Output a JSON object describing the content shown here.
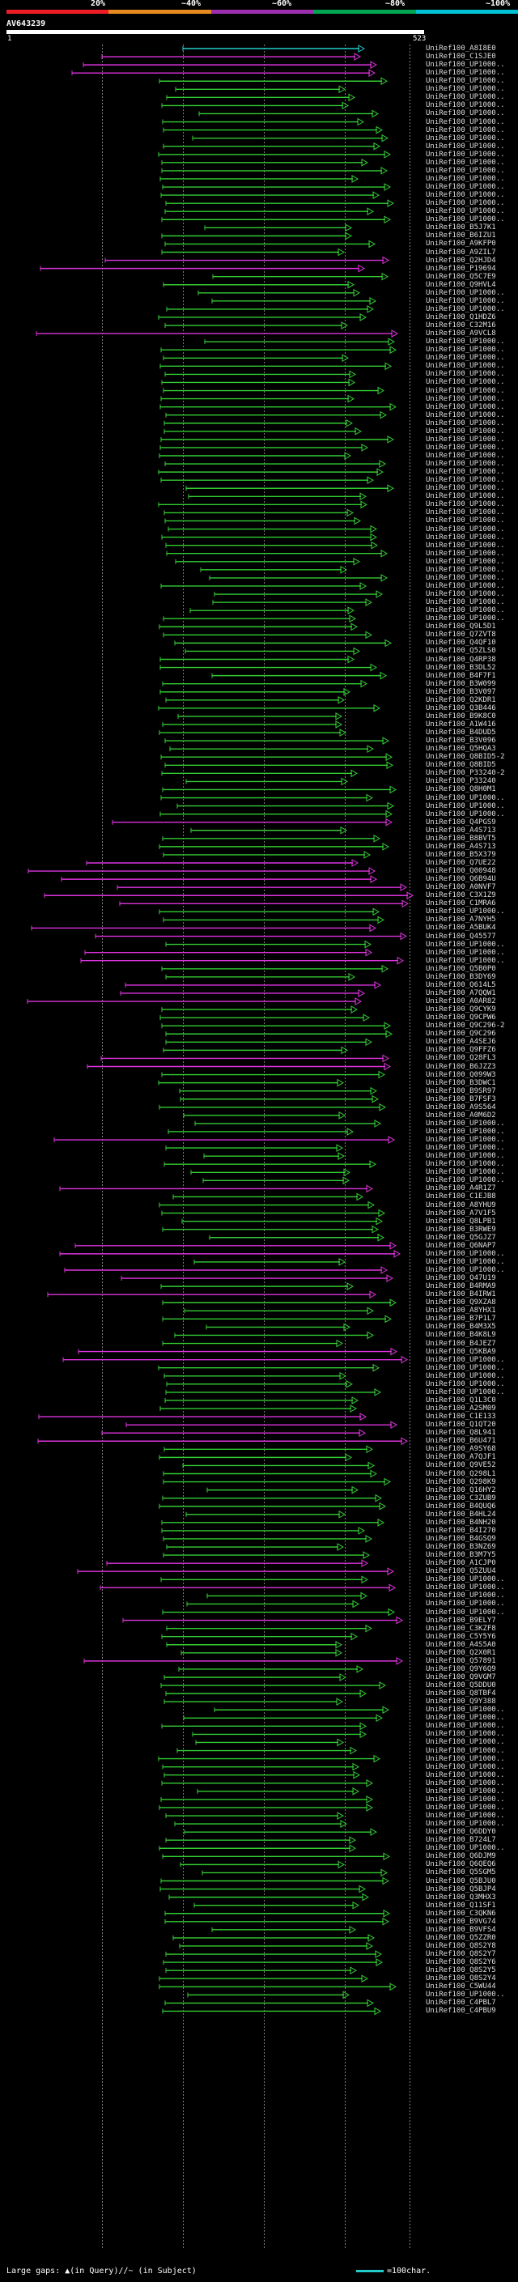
{
  "header": {
    "percent_labels": [
      "20%",
      "~40%",
      "~60%",
      "~80%",
      "~100%"
    ],
    "identity_colors": [
      "#ee1c25",
      "#e78a1f",
      "#9b2fae",
      "#00a651",
      "#00c2d4"
    ]
  },
  "query": {
    "name": "AV643239",
    "start": "1",
    "end": "523"
  },
  "legend": {
    "large_gaps": "Large gaps: ▲(in Query)/∕~ (in Subject)",
    "scale": "=100char."
  },
  "hits": [
    {
      "name": "UniRef100_A8I8E0",
      "color": "cyan"
    },
    {
      "name": "UniRef100_C1SJE0",
      "color": "magenta"
    },
    {
      "name": "UniRef100_UP1000..",
      "color": "magenta"
    },
    {
      "name": "UniRef100_UP1000..",
      "color": "magenta"
    },
    {
      "name": "UniRef100_UP1000..",
      "color": "green"
    },
    {
      "name": "UniRef100_UP1000..",
      "color": "green"
    },
    {
      "name": "UniRef100_UP1000..",
      "color": "green"
    },
    {
      "name": "UniRef100_UP1000..",
      "color": "green"
    },
    {
      "name": "UniRef100_UP1000..",
      "color": "green"
    },
    {
      "name": "UniRef100_UP1000..",
      "color": "green"
    },
    {
      "name": "UniRef100_UP1000..",
      "color": "green"
    },
    {
      "name": "UniRef100_UP1000..",
      "color": "green"
    },
    {
      "name": "UniRef100_UP1000..",
      "color": "green"
    },
    {
      "name": "UniRef100_UP1000..",
      "color": "green"
    },
    {
      "name": "UniRef100_UP1000..",
      "color": "green"
    },
    {
      "name": "UniRef100_UP1000..",
      "color": "green"
    },
    {
      "name": "UniRef100_UP1000..",
      "color": "green"
    },
    {
      "name": "UniRef100_UP1000..",
      "color": "green"
    },
    {
      "name": "UniRef100_UP1000..",
      "color": "green"
    },
    {
      "name": "UniRef100_UP1000..",
      "color": "green"
    },
    {
      "name": "UniRef100_UP1000..",
      "color": "green"
    },
    {
      "name": "UniRef100_UP1000..",
      "color": "green"
    },
    {
      "name": "UniRef100_B5J7K1",
      "color": "green"
    },
    {
      "name": "UniRef100_B6IZU1",
      "color": "green"
    },
    {
      "name": "UniRef100_A9KFP0",
      "color": "green"
    },
    {
      "name": "UniRef100_A9ZIL7",
      "color": "green"
    },
    {
      "name": "UniRef100_Q2HJD4",
      "color": "magenta"
    },
    {
      "name": "UniRef100_P19694",
      "color": "magenta"
    },
    {
      "name": "UniRef100_Q5C7E9",
      "color": "green"
    },
    {
      "name": "UniRef100_Q9HVL4",
      "color": "green"
    },
    {
      "name": "UniRef100_UP1000..",
      "color": "green"
    },
    {
      "name": "UniRef100_UP1000..",
      "color": "green"
    },
    {
      "name": "UniRef100_UP1000..",
      "color": "green"
    },
    {
      "name": "UniRef100_Q1HDZ6",
      "color": "green"
    },
    {
      "name": "UniRef100_C32M16",
      "color": "green"
    },
    {
      "name": "UniRef100_A9VCL8",
      "color": "magenta"
    },
    {
      "name": "UniRef100_UP1000..",
      "color": "green"
    },
    {
      "name": "UniRef100_UP1000..",
      "color": "green"
    },
    {
      "name": "UniRef100_UP1000..",
      "color": "green"
    },
    {
      "name": "UniRef100_UP1000..",
      "color": "green"
    },
    {
      "name": "UniRef100_UP1000..",
      "color": "green"
    },
    {
      "name": "UniRef100_UP1000..",
      "color": "green"
    },
    {
      "name": "UniRef100_UP1000..",
      "color": "green"
    },
    {
      "name": "UniRef100_UP1000..",
      "color": "green"
    },
    {
      "name": "UniRef100_UP1000..",
      "color": "green"
    },
    {
      "name": "UniRef100_UP1000..",
      "color": "green"
    },
    {
      "name": "UniRef100_UP1000..",
      "color": "green"
    },
    {
      "name": "UniRef100_UP1000..",
      "color": "green"
    },
    {
      "name": "UniRef100_UP1000..",
      "color": "green"
    },
    {
      "name": "UniRef100_UP1000..",
      "color": "green"
    },
    {
      "name": "UniRef100_UP1000..",
      "color": "green"
    },
    {
      "name": "UniRef100_UP1000..",
      "color": "green"
    },
    {
      "name": "UniRef100_UP1000..",
      "color": "green"
    },
    {
      "name": "UniRef100_UP1000..",
      "color": "green"
    },
    {
      "name": "UniRef100_UP1000..",
      "color": "green"
    },
    {
      "name": "UniRef100_UP1000..",
      "color": "green"
    },
    {
      "name": "UniRef100_UP1000..",
      "color": "green"
    },
    {
      "name": "UniRef100_UP1000..",
      "color": "green"
    },
    {
      "name": "UniRef100_UP1000..",
      "color": "green"
    },
    {
      "name": "UniRef100_UP1000..",
      "color": "green"
    },
    {
      "name": "UniRef100_UP1000..",
      "color": "green"
    },
    {
      "name": "UniRef100_UP1000..",
      "color": "green"
    },
    {
      "name": "UniRef100_UP1000..",
      "color": "green"
    },
    {
      "name": "UniRef100_UP1000..",
      "color": "green"
    },
    {
      "name": "UniRef100_UP1000..",
      "color": "green"
    },
    {
      "name": "UniRef100_UP1000..",
      "color": "green"
    },
    {
      "name": "UniRef100_UP1000..",
      "color": "green"
    },
    {
      "name": "UniRef100_UP1000..",
      "color": "green"
    },
    {
      "name": "UniRef100_UP1000..",
      "color": "green"
    },
    {
      "name": "UniRef100_UP1000..",
      "color": "green"
    },
    {
      "name": "UniRef100_UP1000..",
      "color": "green"
    },
    {
      "name": "UniRef100_Q9L5D1",
      "color": "green"
    },
    {
      "name": "UniRef100_Q7ZVT8",
      "color": "green"
    },
    {
      "name": "UniRef100_Q4QF10",
      "color": "green"
    },
    {
      "name": "UniRef100_Q5ZLS0",
      "color": "green"
    },
    {
      "name": "UniRef100_Q4RP38",
      "color": "green"
    },
    {
      "name": "UniRef100_B3DL52",
      "color": "green"
    },
    {
      "name": "UniRef100_B4F7F1",
      "color": "green"
    },
    {
      "name": "UniRef100_B3W099",
      "color": "green"
    },
    {
      "name": "UniRef100_B3V097",
      "color": "green"
    },
    {
      "name": "UniRef100_Q2KDR1",
      "color": "green"
    },
    {
      "name": "UniRef100_Q3B446",
      "color": "green"
    },
    {
      "name": "UniRef100_B9K8C0",
      "color": "green"
    },
    {
      "name": "UniRef100_A1W416",
      "color": "green"
    },
    {
      "name": "UniRef100_B4DUD5",
      "color": "green"
    },
    {
      "name": "UniRef100_B3V096",
      "color": "green"
    },
    {
      "name": "UniRef100_Q5HQA3",
      "color": "green"
    },
    {
      "name": "UniRef100_Q8BID5-2",
      "color": "green"
    },
    {
      "name": "UniRef100_Q8BID5",
      "color": "green"
    },
    {
      "name": "UniRef100_P33240-2",
      "color": "green"
    },
    {
      "name": "UniRef100_P33240",
      "color": "green"
    },
    {
      "name": "UniRef100_Q8H0M1",
      "color": "green"
    },
    {
      "name": "UniRef100_UP1000..",
      "color": "green"
    },
    {
      "name": "UniRef100_UP1000..",
      "color": "green"
    },
    {
      "name": "UniRef100_UP1000..",
      "color": "green"
    },
    {
      "name": "UniRef100_Q4PGS9",
      "color": "magenta"
    },
    {
      "name": "UniRef100_A4S713",
      "color": "green"
    },
    {
      "name": "UniRef100_B8BVT5",
      "color": "green"
    },
    {
      "name": "UniRef100_A4S713",
      "color": "green"
    },
    {
      "name": "UniRef100_B5X379",
      "color": "green"
    },
    {
      "name": "UniRef100_Q7UE22",
      "color": "magenta"
    },
    {
      "name": "UniRef100_Q00948",
      "color": "magenta"
    },
    {
      "name": "UniRef100_Q6B94U",
      "color": "magenta"
    },
    {
      "name": "UniRef100_A0NVF7",
      "color": "magenta"
    },
    {
      "name": "UniRef100_C3X1Z9",
      "color": "magenta"
    },
    {
      "name": "UniRef100_C1MRA6",
      "color": "magenta"
    },
    {
      "name": "UniRef100_UP1000..",
      "color": "green"
    },
    {
      "name": "UniRef100_A7NYH5",
      "color": "green"
    },
    {
      "name": "UniRef100_A5BUK4",
      "color": "magenta"
    },
    {
      "name": "UniRef100_Q45577",
      "color": "magenta"
    },
    {
      "name": "UniRef100_UP1000..",
      "color": "green"
    },
    {
      "name": "UniRef100_UP1000..",
      "color": "magenta"
    },
    {
      "name": "UniRef100_UP1000..",
      "color": "magenta"
    },
    {
      "name": "UniRef100_Q5B0P0",
      "color": "green"
    },
    {
      "name": "UniRef100_B3DY69",
      "color": "green"
    },
    {
      "name": "UniRef100_Q614L5",
      "color": "magenta"
    },
    {
      "name": "UniRef100_A7QQW1",
      "color": "magenta"
    },
    {
      "name": "UniRef100_A0AR82",
      "color": "magenta"
    },
    {
      "name": "UniRef100_Q9CYK9",
      "color": "green"
    },
    {
      "name": "UniRef100_Q9CPW6",
      "color": "green"
    },
    {
      "name": "UniRef100_Q9C296-2",
      "color": "green"
    },
    {
      "name": "UniRef100_Q9C296",
      "color": "green"
    },
    {
      "name": "UniRef100_A4SEJ6",
      "color": "green"
    },
    {
      "name": "UniRef100_Q9FFZ6",
      "color": "green"
    },
    {
      "name": "UniRef100_Q28FL3",
      "color": "magenta"
    },
    {
      "name": "UniRef100_B6JZZ3",
      "color": "magenta"
    },
    {
      "name": "UniRef100_Q099W3",
      "color": "green"
    },
    {
      "name": "UniRef100_B3DWC1",
      "color": "green"
    },
    {
      "name": "UniRef100_B9SR97",
      "color": "green"
    },
    {
      "name": "UniRef100_B7FSF3",
      "color": "green"
    },
    {
      "name": "UniRef100_A9S564",
      "color": "green"
    },
    {
      "name": "UniRef100_A0M6D2",
      "color": "green"
    },
    {
      "name": "UniRef100_UP1000..",
      "color": "green"
    },
    {
      "name": "UniRef100_UP1000..",
      "color": "green"
    },
    {
      "name": "UniRef100_UP1000..",
      "color": "magenta"
    },
    {
      "name": "UniRef100_UP1000..",
      "color": "green"
    },
    {
      "name": "UniRef100_UP1000..",
      "color": "green"
    },
    {
      "name": "UniRef100_UP1000..",
      "color": "green"
    },
    {
      "name": "UniRef100_UP1000..",
      "color": "green"
    },
    {
      "name": "UniRef100_UP1000..",
      "color": "green"
    },
    {
      "name": "UniRef100_A4R1Z7",
      "color": "magenta"
    },
    {
      "name": "UniRef100_C1EJB8",
      "color": "green"
    },
    {
      "name": "UniRef100_A8YHU9",
      "color": "green"
    },
    {
      "name": "UniRef100_A7V1F5",
      "color": "green"
    },
    {
      "name": "UniRef100_Q8LPB1",
      "color": "green"
    },
    {
      "name": "UniRef100_B3RWE9",
      "color": "green"
    },
    {
      "name": "UniRef100_Q5GJZ7",
      "color": "green"
    },
    {
      "name": "UniRef100_Q6NAP7",
      "color": "magenta"
    },
    {
      "name": "UniRef100_UP1000..",
      "color": "magenta"
    },
    {
      "name": "UniRef100_UP1000..",
      "color": "green"
    },
    {
      "name": "UniRef100_UP1000..",
      "color": "magenta"
    },
    {
      "name": "UniRef100_Q47U19",
      "color": "magenta"
    },
    {
      "name": "UniRef100_B4RMA9",
      "color": "green"
    },
    {
      "name": "UniRef100_B4IRW1",
      "color": "magenta"
    },
    {
      "name": "UniRef100_Q9XZA8",
      "color": "green"
    },
    {
      "name": "UniRef100_A8YHX1",
      "color": "green"
    },
    {
      "name": "UniRef100_B7P1L7",
      "color": "green"
    },
    {
      "name": "UniRef100_B4M3X5",
      "color": "green"
    },
    {
      "name": "UniRef100_B4K8L9",
      "color": "green"
    },
    {
      "name": "UniRef100_B4JEZ7",
      "color": "green"
    },
    {
      "name": "UniRef100_Q5KBA9",
      "color": "magenta"
    },
    {
      "name": "UniRef100_UP1000..",
      "color": "magenta"
    },
    {
      "name": "UniRef100_UP1000..",
      "color": "green"
    },
    {
      "name": "UniRef100_UP1000..",
      "color": "green"
    },
    {
      "name": "UniRef100_UP1000..",
      "color": "green"
    },
    {
      "name": "UniRef100_UP1000..",
      "color": "green"
    },
    {
      "name": "UniRef100_Q1L3C0",
      "color": "green"
    },
    {
      "name": "UniRef100_A2SM09",
      "color": "green"
    },
    {
      "name": "UniRef100_C1E133",
      "color": "magenta"
    },
    {
      "name": "UniRef100_Q1QT20",
      "color": "magenta"
    },
    {
      "name": "UniRef100_Q8L941",
      "color": "magenta"
    },
    {
      "name": "UniRef100_B6U471",
      "color": "magenta"
    },
    {
      "name": "UniRef100_A9SY68",
      "color": "green"
    },
    {
      "name": "UniRef100_A7QJF1",
      "color": "green"
    },
    {
      "name": "UniRef100_Q9VE52",
      "color": "green"
    },
    {
      "name": "UniRef100_Q298L1",
      "color": "green"
    },
    {
      "name": "UniRef100_Q298K9",
      "color": "green"
    },
    {
      "name": "UniRef100_Q16HY2",
      "color": "green"
    },
    {
      "name": "UniRef100_C3ZUB9",
      "color": "green"
    },
    {
      "name": "UniRef100_B4QUQ6",
      "color": "green"
    },
    {
      "name": "UniRef100_B4HL24",
      "color": "green"
    },
    {
      "name": "UniRef100_B4NH20",
      "color": "green"
    },
    {
      "name": "UniRef100_B4I270",
      "color": "green"
    },
    {
      "name": "UniRef100_B4GSQ9",
      "color": "green"
    },
    {
      "name": "UniRef100_B3NZ69",
      "color": "green"
    },
    {
      "name": "UniRef100_B3M7Y5",
      "color": "green"
    },
    {
      "name": "UniRef100_A1CJP0",
      "color": "magenta"
    },
    {
      "name": "UniRef100_Q5ZUU4",
      "color": "magenta"
    },
    {
      "name": "UniRef100_UP1000..",
      "color": "green"
    },
    {
      "name": "UniRef100_UP1000..",
      "color": "magenta"
    },
    {
      "name": "UniRef100_UP1000..",
      "color": "green"
    },
    {
      "name": "UniRef100_UP1000..",
      "color": "green"
    },
    {
      "name": "UniRef100_UP1000..",
      "color": "green"
    },
    {
      "name": "UniRef100_B9ELY7",
      "color": "magenta"
    },
    {
      "name": "UniRef100_C3KZF8",
      "color": "green"
    },
    {
      "name": "UniRef100_C5Y5Y6",
      "color": "green"
    },
    {
      "name": "UniRef100_A4S5A0",
      "color": "green"
    },
    {
      "name": "UniRef100_Q2X0R1",
      "color": "green"
    },
    {
      "name": "UniRef100_Q57891",
      "color": "magenta"
    },
    {
      "name": "UniRef100_Q9Y6Q9",
      "color": "green"
    },
    {
      "name": "UniRef100_Q9VGM7",
      "color": "green"
    },
    {
      "name": "UniRef100_Q5DDU0",
      "color": "green"
    },
    {
      "name": "UniRef100_Q8TBF4",
      "color": "green"
    },
    {
      "name": "UniRef100_Q9Y388",
      "color": "green"
    },
    {
      "name": "UniRef100_UP1000..",
      "color": "green"
    },
    {
      "name": "UniRef100_UP1000..",
      "color": "green"
    },
    {
      "name": "UniRef100_UP1000..",
      "color": "green"
    },
    {
      "name": "UniRef100_UP1000..",
      "color": "green"
    },
    {
      "name": "UniRef100_UP1000..",
      "color": "green"
    },
    {
      "name": "UniRef100_UP1000..",
      "color": "green"
    },
    {
      "name": "UniRef100_UP1000..",
      "color": "green"
    },
    {
      "name": "UniRef100_UP1000..",
      "color": "green"
    },
    {
      "name": "UniRef100_UP1000..",
      "color": "green"
    },
    {
      "name": "UniRef100_UP1000..",
      "color": "green"
    },
    {
      "name": "UniRef100_UP1000..",
      "color": "green"
    },
    {
      "name": "UniRef100_UP1000..",
      "color": "green"
    },
    {
      "name": "UniRef100_UP1000..",
      "color": "green"
    },
    {
      "name": "UniRef100_UP1000..",
      "color": "green"
    },
    {
      "name": "UniRef100_UP1000..",
      "color": "green"
    },
    {
      "name": "UniRef100_Q6DDY0",
      "color": "green"
    },
    {
      "name": "UniRef100_B724L7",
      "color": "green"
    },
    {
      "name": "UniRef100_UP1000..",
      "color": "green"
    },
    {
      "name": "UniRef100_Q6DJM9",
      "color": "green"
    },
    {
      "name": "UniRef100_Q6QEQ6",
      "color": "green"
    },
    {
      "name": "UniRef100_Q5SGM5",
      "color": "green"
    },
    {
      "name": "UniRef100_Q5BJU0",
      "color": "green"
    },
    {
      "name": "UniRef100_Q5BJP4",
      "color": "green"
    },
    {
      "name": "UniRef100_Q3MHX3",
      "color": "green"
    },
    {
      "name": "UniRef100_Q11SF1",
      "color": "green"
    },
    {
      "name": "UniRef100_C3QKN6",
      "color": "green"
    },
    {
      "name": "UniRef100_B9VG74",
      "color": "green"
    },
    {
      "name": "UniRef100_B9VFS4",
      "color": "green"
    },
    {
      "name": "UniRef100_Q5ZZR0",
      "color": "green"
    },
    {
      "name": "UniRef100_Q8S2Y8",
      "color": "green"
    },
    {
      "name": "UniRef100_Q8S2Y7",
      "color": "green"
    },
    {
      "name": "UniRef100_Q8S2Y6",
      "color": "green"
    },
    {
      "name": "UniRef100_Q8S2Y5",
      "color": "green"
    },
    {
      "name": "UniRef100_Q8S2Y4",
      "color": "green"
    },
    {
      "name": "UniRef100_C5WU44",
      "color": "green"
    },
    {
      "name": "UniRef100_UP1000..",
      "color": "green"
    },
    {
      "name": "UniRef100_C4PBL7",
      "color": "green"
    },
    {
      "name": "UniRef100_C4PBU9",
      "color": "green"
    }
  ]
}
